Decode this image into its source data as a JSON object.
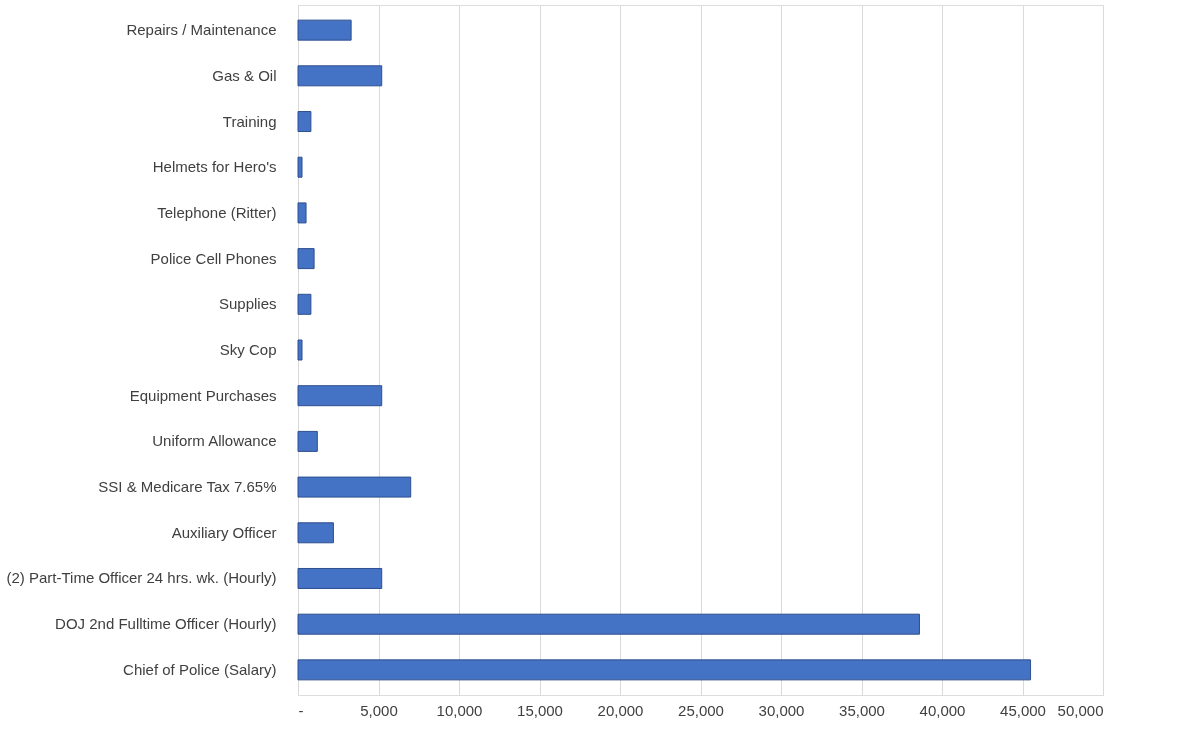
{
  "chart_data": {
    "type": "bar",
    "orientation": "horizontal",
    "categories": [
      "Repairs / Maintenance",
      "Gas & Oil ",
      "Training",
      "Helmets for Hero's",
      "Telephone (Ritter)",
      "Police Cell Phones",
      "Supplies",
      "Sky Cop",
      "Equipment Purchases",
      "Uniform Allowance",
      "SSI & Medicare Tax 7.65%",
      "Auxiliary Officer",
      "(2) Part-Time Officer 24 hrs. wk. (Hourly)",
      "DOJ 2nd Fulltime Officer (Hourly)",
      "Chief of Police (Salary)"
    ],
    "values": [
      3300,
      5200,
      800,
      250,
      500,
      1000,
      800,
      250,
      5200,
      1200,
      7000,
      2200,
      5200,
      38600,
      45500
    ],
    "color": "#4472c4",
    "xlim": [
      0,
      50000
    ],
    "xticks": [
      {
        "value": 0,
        "label": "-"
      },
      {
        "value": 5000,
        "label": "5,000"
      },
      {
        "value": 10000,
        "label": "10,000"
      },
      {
        "value": 15000,
        "label": "15,000"
      },
      {
        "value": 20000,
        "label": "20,000"
      },
      {
        "value": 25000,
        "label": "25,000"
      },
      {
        "value": 30000,
        "label": "30,000"
      },
      {
        "value": 35000,
        "label": "35,000"
      },
      {
        "value": 40000,
        "label": "40,000"
      },
      {
        "value": 45000,
        "label": "45,000"
      },
      {
        "value": 50000,
        "label": "50,000"
      }
    ],
    "grid": "x"
  }
}
